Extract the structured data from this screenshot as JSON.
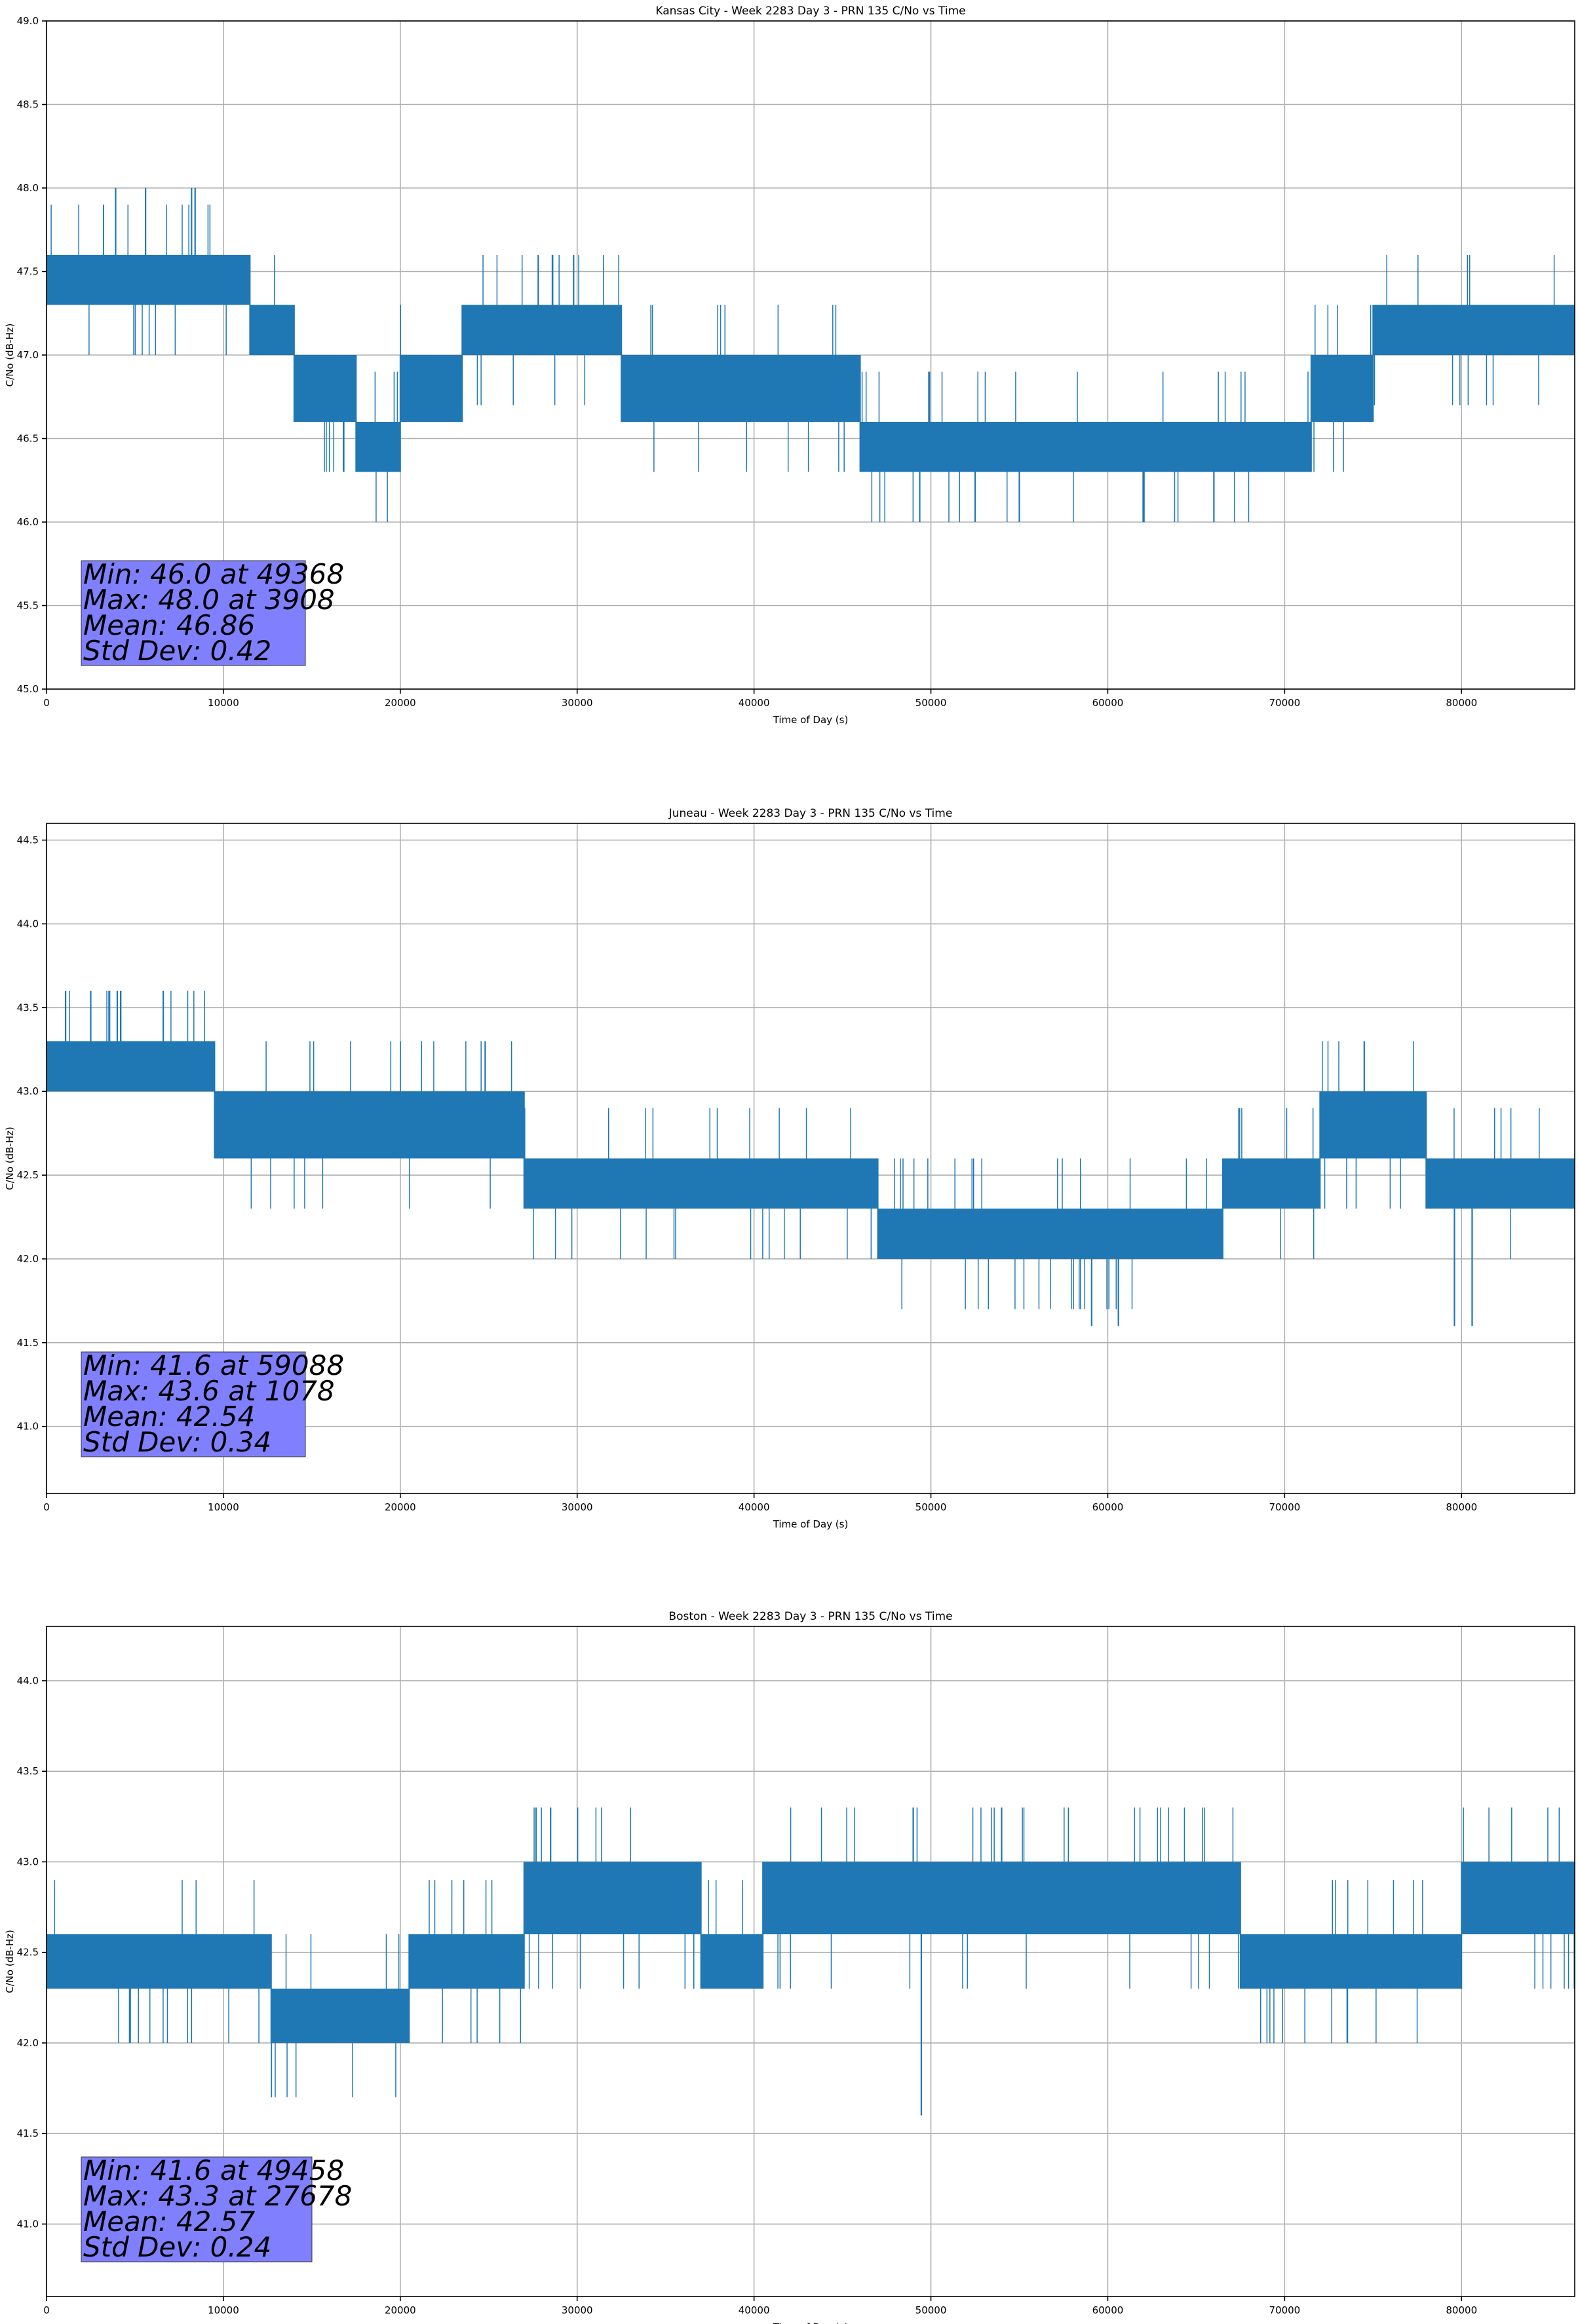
{
  "chart_data": [
    {
      "type": "line",
      "title": "Kansas City - Week 2283 Day 3 - PRN 135 C/No vs Time",
      "xlabel": "Time of Day (s)",
      "ylabel": "C/No (dB-Hz)",
      "xlim": [
        0,
        86400
      ],
      "ylim": [
        45.0,
        49.0
      ],
      "xticks": [
        0,
        10000,
        20000,
        30000,
        40000,
        50000,
        60000,
        70000,
        80000
      ],
      "yticks": [
        "45.0",
        "45.5",
        "46.0",
        "46.5",
        "47.0",
        "47.5",
        "48.0",
        "48.5",
        "49.0"
      ],
      "grid": true,
      "color": "#1f77b4",
      "stats": [
        "Min: 46.0 at 49368",
        "Max: 48.0 at 3908",
        "Mean: 46.86",
        "Std Dev: 0.42"
      ],
      "band_segments": [
        {
          "x": [
            0,
            11500
          ],
          "y": [
            47.3,
            47.6
          ]
        },
        {
          "x": [
            11500,
            14000
          ],
          "y": [
            47.0,
            47.3
          ]
        },
        {
          "x": [
            14000,
            17500
          ],
          "y": [
            46.6,
            47.0
          ]
        },
        {
          "x": [
            17500,
            20000
          ],
          "y": [
            46.3,
            46.6
          ]
        },
        {
          "x": [
            20000,
            23500
          ],
          "y": [
            46.6,
            47.0
          ]
        },
        {
          "x": [
            23500,
            32500
          ],
          "y": [
            47.0,
            47.3
          ]
        },
        {
          "x": [
            32500,
            46000
          ],
          "y": [
            46.6,
            47.0
          ]
        },
        {
          "x": [
            46000,
            71500
          ],
          "y": [
            46.3,
            46.6
          ]
        },
        {
          "x": [
            71500,
            75000
          ],
          "y": [
            46.6,
            47.0
          ]
        },
        {
          "x": [
            75000,
            86400
          ],
          "y": [
            47.0,
            47.3
          ]
        }
      ],
      "excursions": [
        {
          "x": 3908,
          "y": 48.0
        },
        {
          "x": 5600,
          "y": 48.0
        },
        {
          "x": 8200,
          "y": 48.0
        },
        {
          "x": 8400,
          "y": 48.0
        },
        {
          "x": 27800,
          "y": 47.6
        },
        {
          "x": 28600,
          "y": 47.6
        },
        {
          "x": 29800,
          "y": 47.6
        },
        {
          "x": 49368,
          "y": 46.0
        },
        {
          "x": 52500,
          "y": 46.0
        },
        {
          "x": 55000,
          "y": 46.0
        },
        {
          "x": 62000,
          "y": 46.0
        },
        {
          "x": 66000,
          "y": 46.0
        }
      ]
    },
    {
      "type": "line",
      "title": "Juneau - Week 2283 Day 3 - PRN 135 C/No vs Time",
      "xlabel": "Time of Day (s)",
      "ylabel": "C/No (dB-Hz)",
      "xlim": [
        0,
        86400
      ],
      "ylim": [
        40.6,
        44.6
      ],
      "xticks": [
        0,
        10000,
        20000,
        30000,
        40000,
        50000,
        60000,
        70000,
        80000
      ],
      "yticks": [
        "41.0",
        "41.5",
        "42.0",
        "42.5",
        "43.0",
        "43.5",
        "44.0",
        "44.5"
      ],
      "grid": true,
      "color": "#1f77b4",
      "stats": [
        "Min: 41.6 at 59088",
        "Max: 43.6 at 1078",
        "Mean: 42.54",
        "Std Dev: 0.34"
      ],
      "band_segments": [
        {
          "x": [
            0,
            9500
          ],
          "y": [
            43.0,
            43.3
          ]
        },
        {
          "x": [
            9500,
            27000
          ],
          "y": [
            42.6,
            43.0
          ]
        },
        {
          "x": [
            27000,
            47000
          ],
          "y": [
            42.3,
            42.6
          ]
        },
        {
          "x": [
            47000,
            66500
          ],
          "y": [
            42.0,
            42.3
          ]
        },
        {
          "x": [
            66500,
            72000
          ],
          "y": [
            42.3,
            42.6
          ]
        },
        {
          "x": [
            72000,
            78000
          ],
          "y": [
            42.6,
            43.0
          ]
        },
        {
          "x": [
            78000,
            86400
          ],
          "y": [
            42.3,
            42.6
          ]
        }
      ],
      "excursions": [
        {
          "x": 1078,
          "y": 43.6
        },
        {
          "x": 2500,
          "y": 43.6
        },
        {
          "x": 4000,
          "y": 43.6
        },
        {
          "x": 6600,
          "y": 43.6
        },
        {
          "x": 24800,
          "y": 43.3
        },
        {
          "x": 59088,
          "y": 41.6
        },
        {
          "x": 60600,
          "y": 41.6
        },
        {
          "x": 74500,
          "y": 43.3
        },
        {
          "x": 79600,
          "y": 41.6
        },
        {
          "x": 80600,
          "y": 41.6
        }
      ]
    },
    {
      "type": "line",
      "title": "Boston - Week 2283 Day 3 - PRN 135 C/No vs Time",
      "xlabel": "Time of Day (s)",
      "ylabel": "C/No (dB-Hz)",
      "xlim": [
        0,
        86400
      ],
      "ylim": [
        40.6,
        44.3
      ],
      "xticks": [
        0,
        10000,
        20000,
        30000,
        40000,
        50000,
        60000,
        70000,
        80000
      ],
      "yticks": [
        "41.0",
        "41.5",
        "42.0",
        "42.5",
        "43.0",
        "43.5",
        "44.0"
      ],
      "grid": true,
      "color": "#1f77b4",
      "stats": [
        "Min: 41.6 at 49458",
        "Max: 43.3 at 27678",
        "Mean: 42.57",
        "Std Dev: 0.24"
      ],
      "band_segments": [
        {
          "x": [
            0,
            12700
          ],
          "y": [
            42.3,
            42.6
          ]
        },
        {
          "x": [
            12700,
            20500
          ],
          "y": [
            42.0,
            42.3
          ]
        },
        {
          "x": [
            20500,
            27000
          ],
          "y": [
            42.3,
            42.6
          ]
        },
        {
          "x": [
            27000,
            37000
          ],
          "y": [
            42.6,
            43.0
          ]
        },
        {
          "x": [
            37000,
            40500
          ],
          "y": [
            42.3,
            42.6
          ]
        },
        {
          "x": [
            40500,
            67500
          ],
          "y": [
            42.6,
            43.0
          ]
        },
        {
          "x": [
            67500,
            80000
          ],
          "y": [
            42.3,
            42.6
          ]
        },
        {
          "x": [
            80000,
            86400
          ],
          "y": [
            42.6,
            43.0
          ]
        }
      ],
      "excursions": [
        {
          "x": 27678,
          "y": 43.3
        },
        {
          "x": 28500,
          "y": 43.3
        },
        {
          "x": 49000,
          "y": 43.3
        },
        {
          "x": 54000,
          "y": 43.3
        },
        {
          "x": 49458,
          "y": 41.6
        }
      ]
    }
  ]
}
